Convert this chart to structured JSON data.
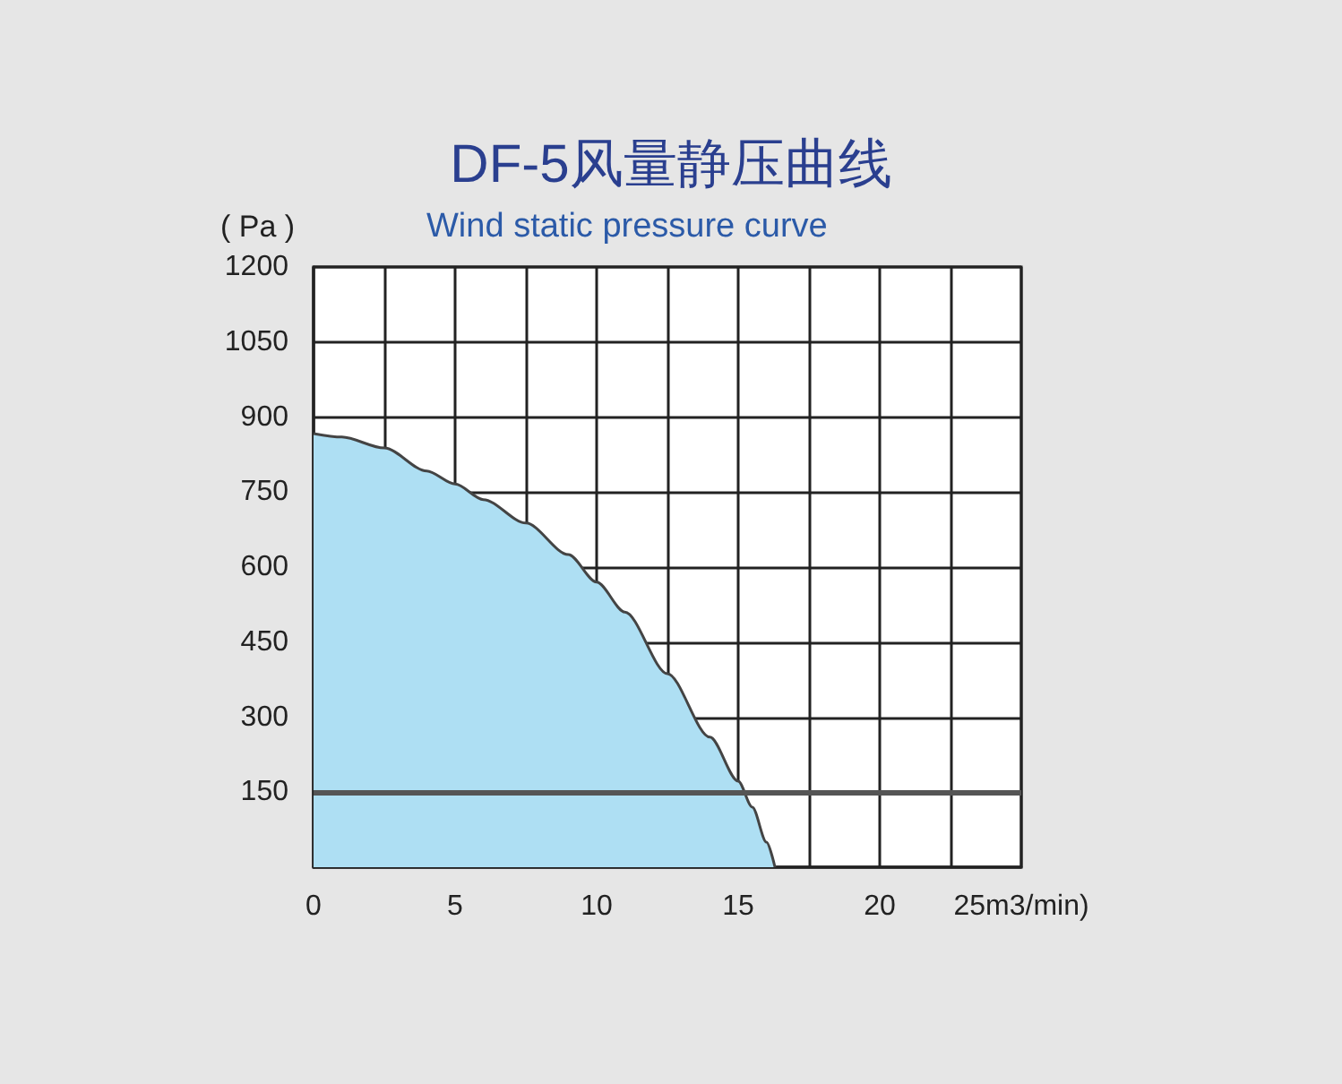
{
  "chart_data": {
    "type": "area",
    "title": "DF-5风量静压曲线",
    "subtitle": "Wind static pressure curve",
    "ylabel": "( Pa )",
    "x": [
      0,
      1,
      2.5,
      4,
      5,
      6,
      7.5,
      9,
      10,
      11,
      12.5,
      14,
      15,
      15.5,
      16,
      16.3
    ],
    "series": [
      {
        "color": "#aedff3",
        "values": [
          867,
          860,
          838,
          792,
          766,
          735,
          688,
          625,
          570,
          510,
          387,
          260,
          172,
          120,
          50,
          0
        ]
      }
    ],
    "xlim": [
      0,
      25
    ],
    "xticks": [
      0,
      {
        "value": 2.5,
        "label": null
      },
      5,
      {
        "value": 7.5,
        "label": null
      },
      10,
      {
        "value": 12.5,
        "label": null
      },
      15,
      {
        "value": 17.5,
        "label": null
      },
      20,
      {
        "value": 22.5,
        "label": null
      },
      {
        "value": 25,
        "label": "25m3/min)"
      }
    ],
    "ylim": [
      0,
      1200
    ],
    "yticks": [
      {
        "value": 0,
        "label": null
      },
      150,
      300,
      450,
      600,
      750,
      900,
      1050,
      1200
    ],
    "ref_lines": [
      {
        "axis": "y",
        "value": 150,
        "color": "#555555"
      }
    ],
    "grid": true
  }
}
